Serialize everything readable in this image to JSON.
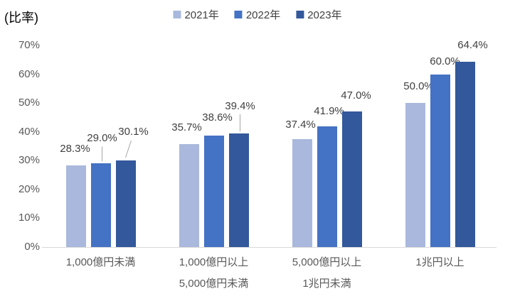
{
  "chart_data": {
    "type": "bar",
    "unit_label": "(比率)",
    "title": "",
    "xlabel": "",
    "ylabel": "(比率)",
    "ylim": [
      0,
      70
    ],
    "grid": false,
    "legend_position": "top-center",
    "y_tick_labels": [
      "0%",
      "10%",
      "20%",
      "30%",
      "40%",
      "50%",
      "60%",
      "70%"
    ],
    "categories": [
      "1,000億円未満",
      "1,000億円以上\n5,000億円未満",
      "5,000億円以上\n1兆円未満",
      "1兆円以上"
    ],
    "series": [
      {
        "name": "2021年",
        "color": "#A9B8DC",
        "values": [
          28.3,
          35.7,
          37.4,
          50.0
        ],
        "labels": [
          "28.3%",
          "35.7%",
          "37.4%",
          "50.0%"
        ]
      },
      {
        "name": "2022年",
        "color": "#4472C4",
        "values": [
          29.0,
          38.6,
          41.9,
          60.0
        ],
        "labels": [
          "29.0%",
          "38.6%",
          "41.9%",
          "60.0%"
        ]
      },
      {
        "name": "2023年",
        "color": "#33589B",
        "values": [
          30.1,
          39.4,
          47.0,
          64.4
        ],
        "labels": [
          "30.1%",
          "39.4%",
          "47.0%",
          "64.4%"
        ]
      }
    ],
    "colors": {
      "axis_line": "#d9d9d9",
      "tick_text": "#595959",
      "data_label_text": "#404040",
      "leader_line": "#a6a6a6",
      "unit_label_text": "#000000"
    }
  }
}
